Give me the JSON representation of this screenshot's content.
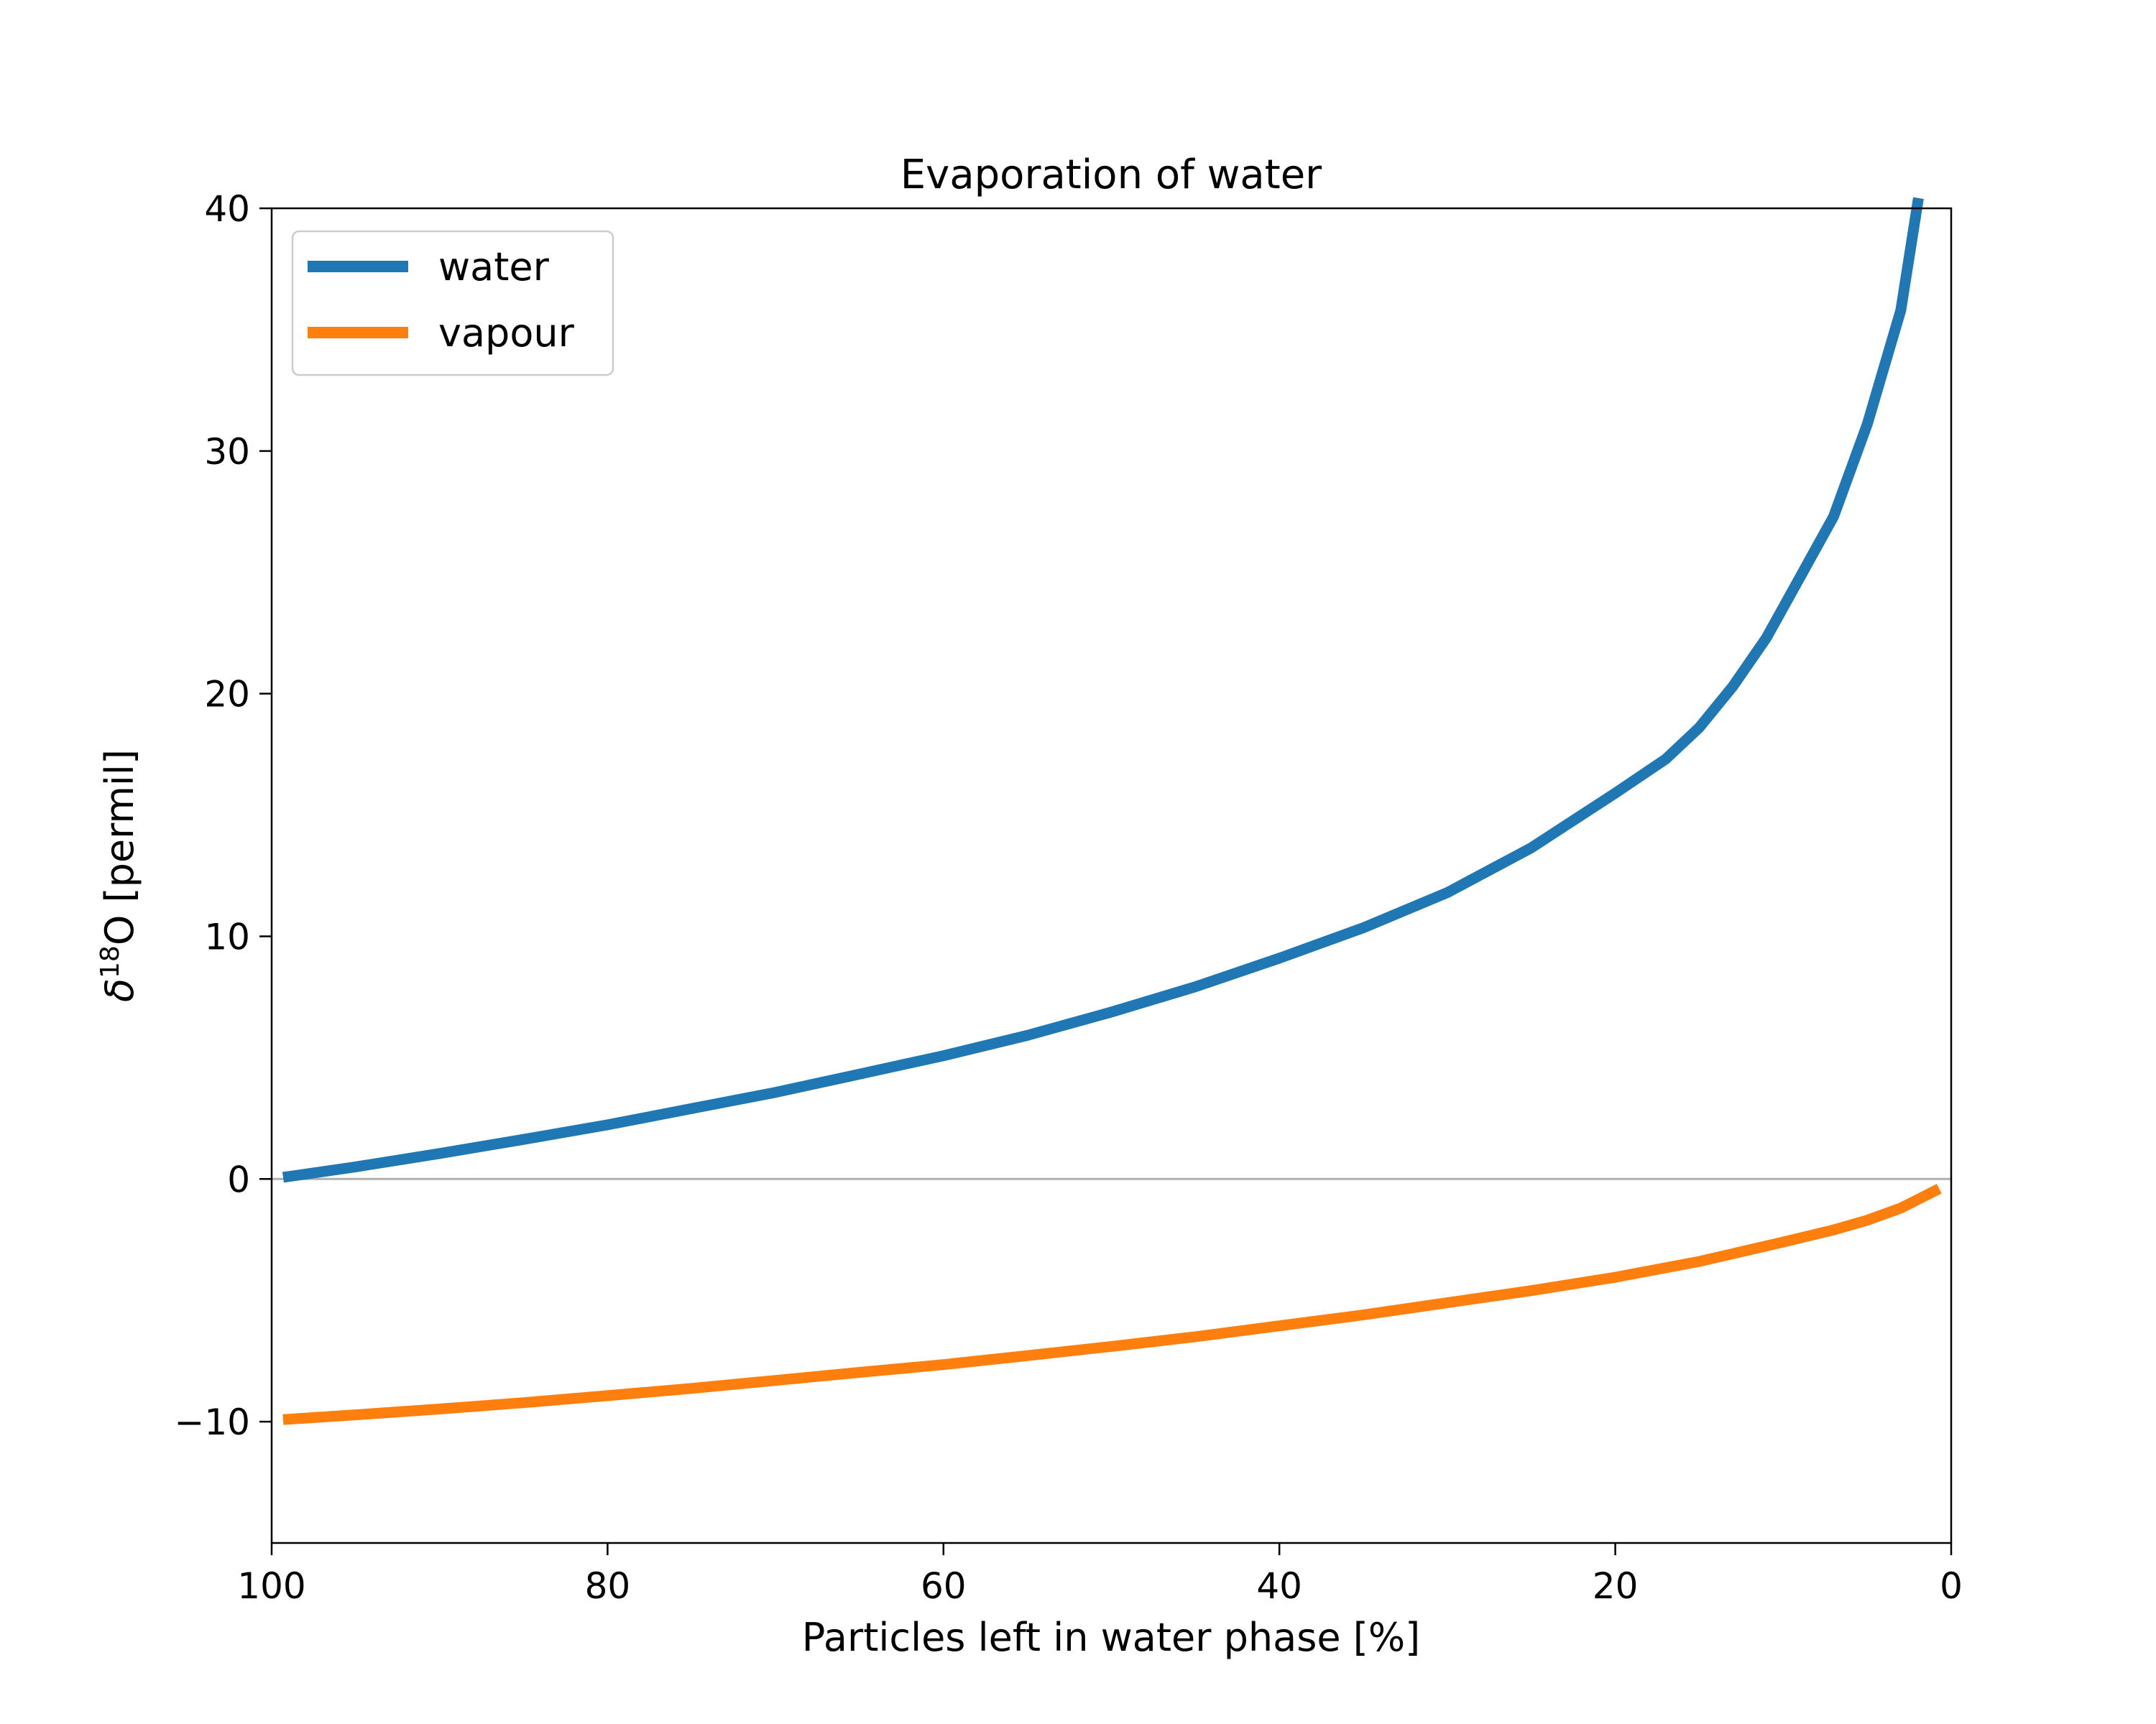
{
  "chart_data": {
    "type": "line",
    "title": "Evaporation of water",
    "xlabel": "Particles left in water phase [%]",
    "ylabel": {
      "prefix": "δ",
      "superscript": "18",
      "suffix": "O [permil]"
    },
    "xlim": [
      100,
      0
    ],
    "ylim": [
      -15,
      40
    ],
    "x_inverted": true,
    "xticks": [
      100,
      80,
      60,
      40,
      20,
      0
    ],
    "xtick_labels": [
      "100",
      "80",
      "60",
      "40",
      "20",
      "0"
    ],
    "yticks": [
      -10,
      0,
      10,
      20,
      30,
      40
    ],
    "ytick_labels": [
      "−10",
      "0",
      "10",
      "20",
      "30",
      "40"
    ],
    "reference_line": {
      "y": 0,
      "color": "#b0b0b0"
    },
    "grid": false,
    "legend_position": "top-left",
    "series": [
      {
        "name": "water",
        "color": "#1f77b4",
        "x": [
          99,
          95,
          90,
          85,
          80,
          75,
          70,
          65,
          60,
          55,
          50,
          45,
          40,
          35,
          30,
          25,
          20,
          17,
          15,
          13,
          11,
          9,
          7,
          5,
          3,
          2
        ],
        "y": [
          0.1,
          0.5,
          1.05,
          1.63,
          2.23,
          2.9,
          3.57,
          4.32,
          5.08,
          5.92,
          6.88,
          7.92,
          9.1,
          10.35,
          11.8,
          13.65,
          15.9,
          17.3,
          18.6,
          20.3,
          22.3,
          24.8,
          27.3,
          31.1,
          35.8,
          40.2
        ]
      },
      {
        "name": "vapour",
        "color": "#ff7f0e",
        "x": [
          99,
          95,
          90,
          85,
          80,
          75,
          70,
          65,
          60,
          55,
          50,
          45,
          40,
          35,
          30,
          25,
          20,
          15,
          10,
          7,
          5,
          3,
          1
        ],
        "y": [
          -9.9,
          -9.72,
          -9.48,
          -9.22,
          -8.93,
          -8.63,
          -8.3,
          -7.97,
          -7.65,
          -7.28,
          -6.9,
          -6.5,
          -6.05,
          -5.6,
          -5.1,
          -4.6,
          -4.05,
          -3.4,
          -2.6,
          -2.1,
          -1.7,
          -1.2,
          -0.5
        ]
      }
    ]
  }
}
